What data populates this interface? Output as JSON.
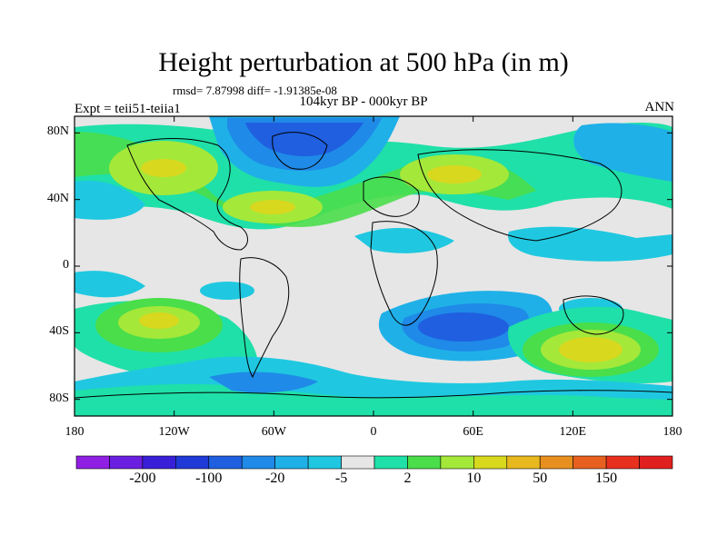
{
  "title": "Height perturbation at 500 hPa (in m)",
  "stats": "rmsd= 7.87998 diff= -1.91385e-08",
  "subtitle": "104kyr BP - 000kyr BP",
  "left_tag": "Expt = teii51-teiia1",
  "right_tag": "ANN",
  "map": {
    "lat_labels": [
      "80N",
      "40N",
      "0",
      "40S",
      "80S"
    ],
    "lon_labels": [
      "180",
      "120W",
      "60W",
      "0",
      "60E",
      "120E",
      "180"
    ]
  },
  "colorbar": {
    "colors": [
      "#8f1fe2",
      "#6a1fe0",
      "#3a1fd8",
      "#1f3ad6",
      "#1f5fe0",
      "#1f8ae8",
      "#1fb0e8",
      "#1fc8e0",
      "#e6e6e6",
      "#1fe0a8",
      "#4ade4a",
      "#a4e83a",
      "#d8d81f",
      "#e8b81f",
      "#e8901f",
      "#e8601f",
      "#e8301f",
      "#e01f1f"
    ],
    "labels": [
      "-200",
      "-100",
      "-20",
      "-5",
      "2",
      "10",
      "50",
      "150"
    ]
  },
  "legend_colors": {
    "strong_negative": "#1f5fe0",
    "negative": "#1f8ae8",
    "weak_negative": "#1fc8e0",
    "neutral": "#e6e6e6",
    "weak_positive": "#1fe0a8",
    "positive": "#4ade4a",
    "strong_positive": "#d8d81f",
    "max_positive": "#e8b81f"
  }
}
